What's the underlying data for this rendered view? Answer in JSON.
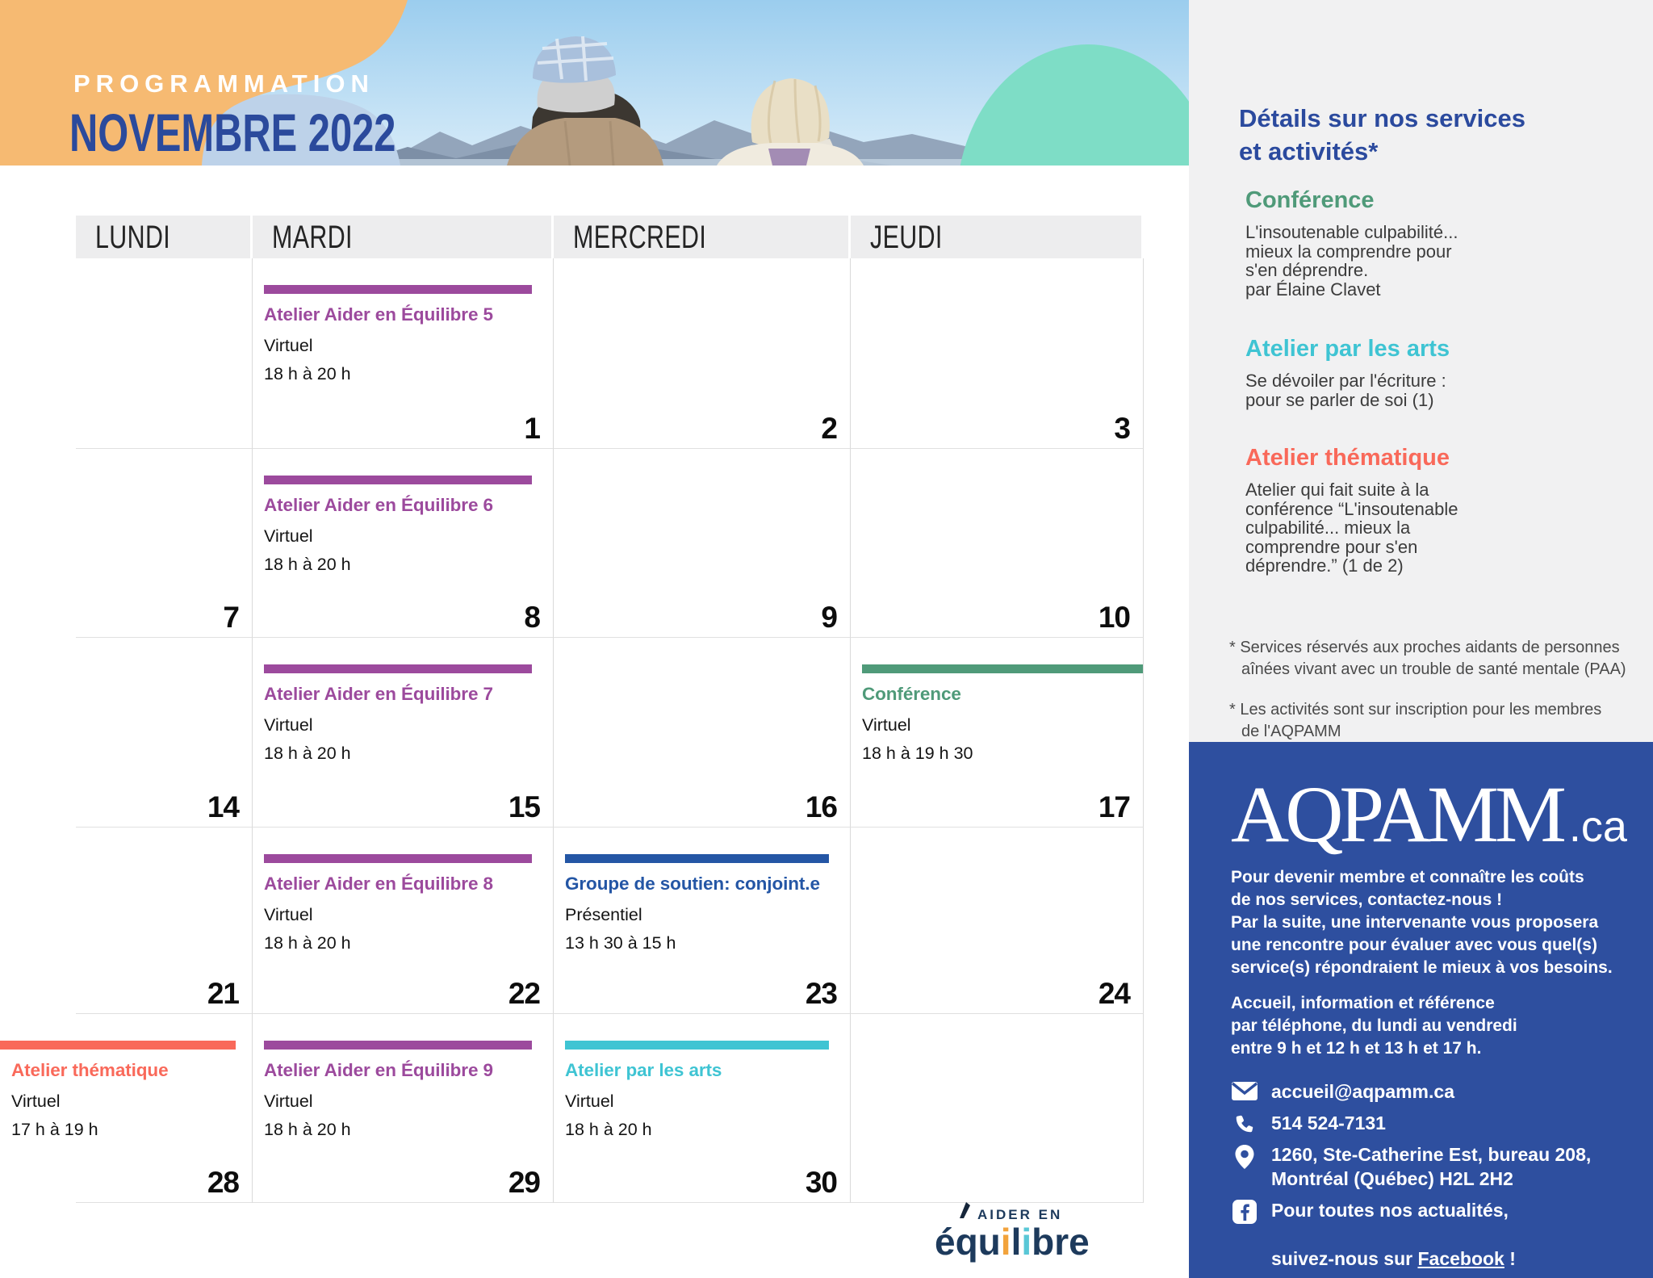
{
  "colors": {
    "purple": "#9c4a9d",
    "green": "#4f9a79",
    "cyan": "#3fc4d3",
    "coral": "#f9695a",
    "blue": "#2456a5",
    "panel_blue": "#2e4f9f",
    "title_blue": "#2b4a9c",
    "orange_blob": "#f6ba72",
    "lightblue_blob": "#bdd2e9",
    "mint_blob": "#7eddc6",
    "navy": "#1d3a5c",
    "logo_orange": "#f2a33c",
    "logo_cyan": "#59c7d6"
  },
  "header": {
    "eyebrow": "PROGRAMMATION",
    "title": "NOVEMBRE 2022"
  },
  "calendar": {
    "day_headers": [
      "LUNDI",
      "MARDI",
      "MERCREDI",
      "JEUDI"
    ],
    "weeks": [
      {
        "cells": [
          {
            "date": ""
          },
          {
            "date": "1",
            "event": {
              "title": "Atelier Aider en Équilibre 5",
              "color": "purple",
              "location": "Virtuel",
              "time": "18 h à 20 h"
            }
          },
          {
            "date": "2"
          },
          {
            "date": "3"
          }
        ]
      },
      {
        "cells": [
          {
            "date": "7"
          },
          {
            "date": "8",
            "event": {
              "title": "Atelier Aider en Équilibre 6",
              "color": "purple",
              "location": "Virtuel",
              "time": "18 h à 20 h"
            }
          },
          {
            "date": "9"
          },
          {
            "date": "10"
          }
        ]
      },
      {
        "cells": [
          {
            "date": "14"
          },
          {
            "date": "15",
            "event": {
              "title": "Atelier Aider en Équilibre 7",
              "color": "purple",
              "location": "Virtuel",
              "time": "18 h à 20 h"
            }
          },
          {
            "date": "16"
          },
          {
            "date": "17",
            "event": {
              "title": "Conférence",
              "color": "green",
              "location": "Virtuel",
              "time": "18 h à 19 h 30",
              "layout": "full"
            }
          }
        ]
      },
      {
        "cells": [
          {
            "date": "21"
          },
          {
            "date": "22",
            "event": {
              "title": "Atelier Aider en Équilibre 8",
              "color": "purple",
              "location": "Virtuel",
              "time": "18 h à 20 h"
            }
          },
          {
            "date": "23",
            "event": {
              "title": "Groupe de soutien: conjoint.e",
              "color": "blue",
              "location": "Présentiel",
              "time": "13 h 30 à 15 h"
            }
          },
          {
            "date": "24"
          }
        ]
      },
      {
        "cells": [
          {
            "date": "28",
            "event": {
              "title": "Atelier thématique",
              "color": "coral",
              "location": "Virtuel",
              "time": "17 h à 19 h",
              "layout": "overflow"
            }
          },
          {
            "date": "29",
            "event": {
              "title": "Atelier Aider en Équilibre 9",
              "color": "purple",
              "location": "Virtuel",
              "time": "18 h à 20 h"
            }
          },
          {
            "date": "30",
            "event": {
              "title": "Atelier par les arts",
              "color": "cyan",
              "location": "Virtuel",
              "time": "18 h à 20 h"
            }
          },
          {
            "date": ""
          }
        ]
      }
    ]
  },
  "sidebar": {
    "title": "Détails sur nos services\net activités*",
    "sections": [
      {
        "heading": "Conférence",
        "color": "green",
        "body": "L'insoutenable culpabilité...\nmieux la comprendre  pour\ns'en déprendre.\npar Élaine Clavet"
      },
      {
        "heading": "Atelier par les arts",
        "color": "cyan",
        "body": "Se dévoiler par l'écriture :\npour se parler de soi (1)"
      },
      {
        "heading": "Atelier thématique",
        "color": "coral",
        "body": "Atelier qui fait suite à la\nconférence “L'insoutenable\nculpabilité... mieux la\ncomprendre  pour s'en\ndéprendre.” (1 de 2)"
      }
    ],
    "footnotes": [
      "* Services réservés aux proches aidants de personnes\naînées vivant avec un trouble de santé mentale (PAA)",
      "* Les activités sont sur inscription pour les membres\nde l'AQPAMM"
    ]
  },
  "panel": {
    "logo": "AQPAMM",
    "logo_suffix": ".ca",
    "intro": "Pour devenir membre et connaître les coûts\nde nos services, contactez-nous !\nPar la suite, une intervenante vous proposera\nune rencontre pour évaluer avec vous quel(s)\nservice(s) répondraient le mieux à vos besoins.",
    "hours": "Accueil, information et référence\npar téléphone, du lundi au vendredi\nentre 9 h et 12 h et 13 h et 17 h.",
    "email": "accueil@aqpamm.ca",
    "phone": "514 524-7131",
    "address": "1260, Ste-Catherine Est, bureau 208,\nMontréal (Québec) H2L 2H2",
    "facebook": {
      "line1": "Pour toutes nos actualités,",
      "prefix": "suivez-nous sur ",
      "link": "Facebook",
      "suffix": " !"
    }
  },
  "footer_logo": {
    "top": "AIDER EN",
    "word_parts": [
      {
        "t": "équ",
        "c": "navy"
      },
      {
        "t": "i",
        "c": "logo_orange"
      },
      {
        "t": "l",
        "c": "navy"
      },
      {
        "t": "i",
        "c": "logo_cyan"
      },
      {
        "t": "bre",
        "c": "navy"
      }
    ]
  }
}
